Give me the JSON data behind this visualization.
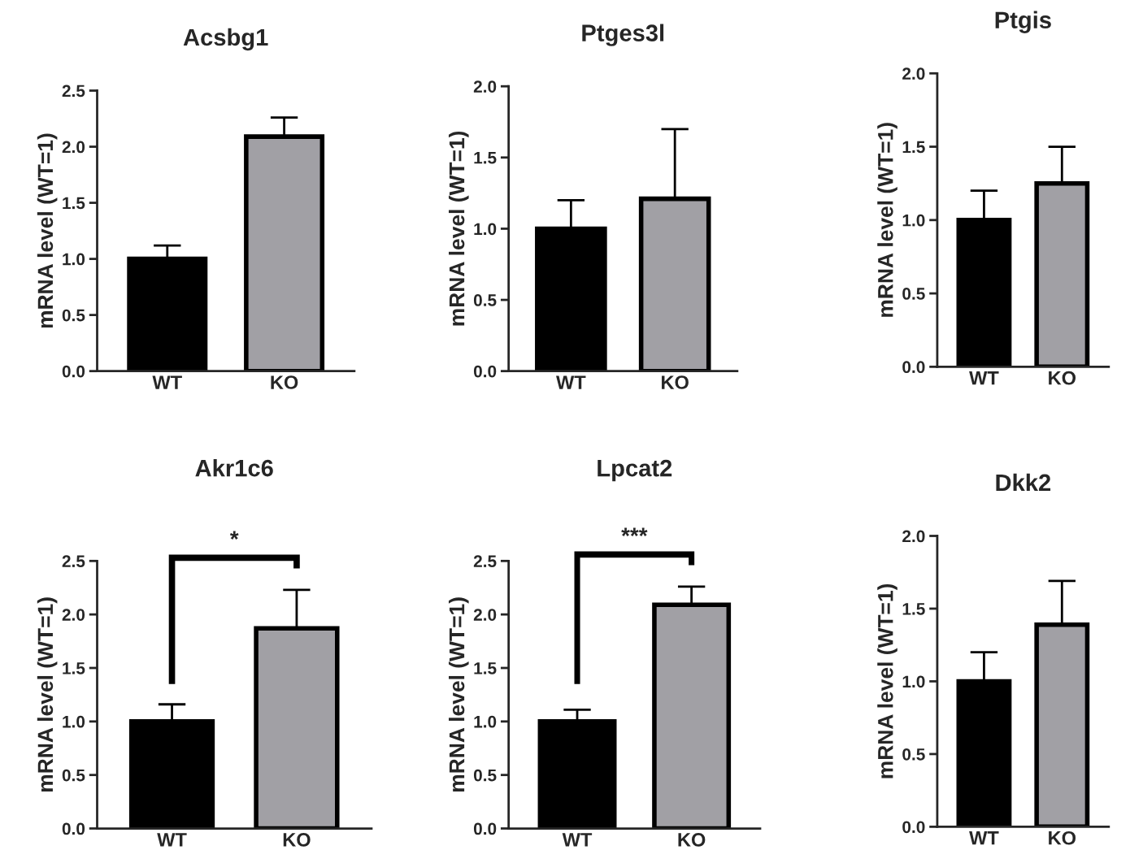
{
  "chart_data": [
    {
      "type": "bar",
      "title": "Acsbg1",
      "ylabel": "mRNA level (WT=1)",
      "categories": [
        "WT",
        "KO"
      ],
      "values": [
        1.0,
        2.09
      ],
      "colors": [
        "#000000",
        "#a09fa6"
      ],
      "errors": [
        [
          1.0,
          1.12
        ],
        [
          2.09,
          2.26
        ]
      ],
      "ylim": [
        0,
        2.5
      ],
      "yticks": [
        {
          "value": 0,
          "label": "0.0"
        },
        {
          "value": 0.5,
          "label": "0.5"
        },
        {
          "value": 1.0,
          "label": "1.0"
        },
        {
          "value": 1.5,
          "label": "1.5"
        },
        {
          "value": 2.0,
          "label": "2.0"
        },
        {
          "value": 2.5,
          "label": "2.5"
        }
      ],
      "grid": false
    },
    {
      "type": "bar",
      "title": "Ptges3l",
      "ylabel": "mRNA level (WT=1)",
      "categories": [
        "WT",
        "KO"
      ],
      "values": [
        1.0,
        1.21
      ],
      "colors": [
        "#000000",
        "#a09fa6"
      ],
      "errors": [
        [
          1.0,
          1.2
        ],
        [
          1.21,
          1.7
        ]
      ],
      "ylim": [
        0,
        2.0
      ],
      "yticks": [
        {
          "value": 0,
          "label": "0.0"
        },
        {
          "value": 0.5,
          "label": "0.5"
        },
        {
          "value": 1.0,
          "label": "1.0"
        },
        {
          "value": 1.5,
          "label": "1.5"
        },
        {
          "value": 2.0,
          "label": "2.0"
        }
      ],
      "grid": false
    },
    {
      "type": "bar",
      "title": "Ptgis",
      "ylabel": "mRNA level (WT=1)",
      "categories": [
        "WT",
        "KO"
      ],
      "values": [
        1.0,
        1.25
      ],
      "colors": [
        "#000000",
        "#a09fa6"
      ],
      "errors": [
        [
          1.0,
          1.2
        ],
        [
          1.25,
          1.5
        ]
      ],
      "ylim": [
        0,
        2.0
      ],
      "yticks": [
        {
          "value": 0,
          "label": "0.0"
        },
        {
          "value": 0.5,
          "label": "0.5"
        },
        {
          "value": 1.0,
          "label": "1.0"
        },
        {
          "value": 1.5,
          "label": "1.5"
        },
        {
          "value": 2.0,
          "label": "2.0"
        }
      ],
      "grid": false
    },
    {
      "type": "bar",
      "title": "Akr1c6",
      "ylabel": "mRNA level (WT=1)",
      "categories": [
        "WT",
        "KO"
      ],
      "values": [
        1.0,
        1.87
      ],
      "colors": [
        "#000000",
        "#a09fa6"
      ],
      "errors": [
        [
          1.0,
          1.16
        ],
        [
          1.87,
          2.23
        ]
      ],
      "ylim": [
        0,
        2.5
      ],
      "yticks": [
        {
          "value": 0,
          "label": "0.0"
        },
        {
          "value": 0.5,
          "label": "0.5"
        },
        {
          "value": 1.0,
          "label": "1.0"
        },
        {
          "value": 1.5,
          "label": "1.5"
        },
        {
          "value": 2.0,
          "label": "2.0"
        },
        {
          "value": 2.5,
          "label": "2.5"
        }
      ],
      "grid": false,
      "annotations": [
        "*"
      ]
    },
    {
      "type": "bar",
      "title": "Lpcat2",
      "ylabel": "mRNA level (WT=1)",
      "categories": [
        "WT",
        "KO"
      ],
      "values": [
        1.0,
        2.09
      ],
      "colors": [
        "#000000",
        "#a09fa6"
      ],
      "errors": [
        [
          1.0,
          1.11
        ],
        [
          2.09,
          2.26
        ]
      ],
      "ylim": [
        0,
        2.5
      ],
      "yticks": [
        {
          "value": 0,
          "label": "0.0"
        },
        {
          "value": 0.5,
          "label": "0.5"
        },
        {
          "value": 1.0,
          "label": "1.0"
        },
        {
          "value": 1.5,
          "label": "1.5"
        },
        {
          "value": 2.0,
          "label": "2.0"
        },
        {
          "value": 2.5,
          "label": "2.5"
        }
      ],
      "grid": false,
      "annotations": [
        "***"
      ]
    },
    {
      "type": "bar",
      "title": "Dkk2",
      "ylabel": "mRNA level (WT=1)",
      "categories": [
        "WT",
        "KO"
      ],
      "values": [
        1.0,
        1.39
      ],
      "colors": [
        "#000000",
        "#a09fa6"
      ],
      "errors": [
        [
          1.0,
          1.2
        ],
        [
          1.39,
          1.69
        ]
      ],
      "ylim": [
        0,
        2.0
      ],
      "yticks": [
        {
          "value": 0,
          "label": "0.0"
        },
        {
          "value": 0.5,
          "label": "0.5"
        },
        {
          "value": 1.0,
          "label": "1.0"
        },
        {
          "value": 1.5,
          "label": "1.5"
        },
        {
          "value": 2.0,
          "label": "2.0"
        }
      ],
      "grid": false
    }
  ]
}
